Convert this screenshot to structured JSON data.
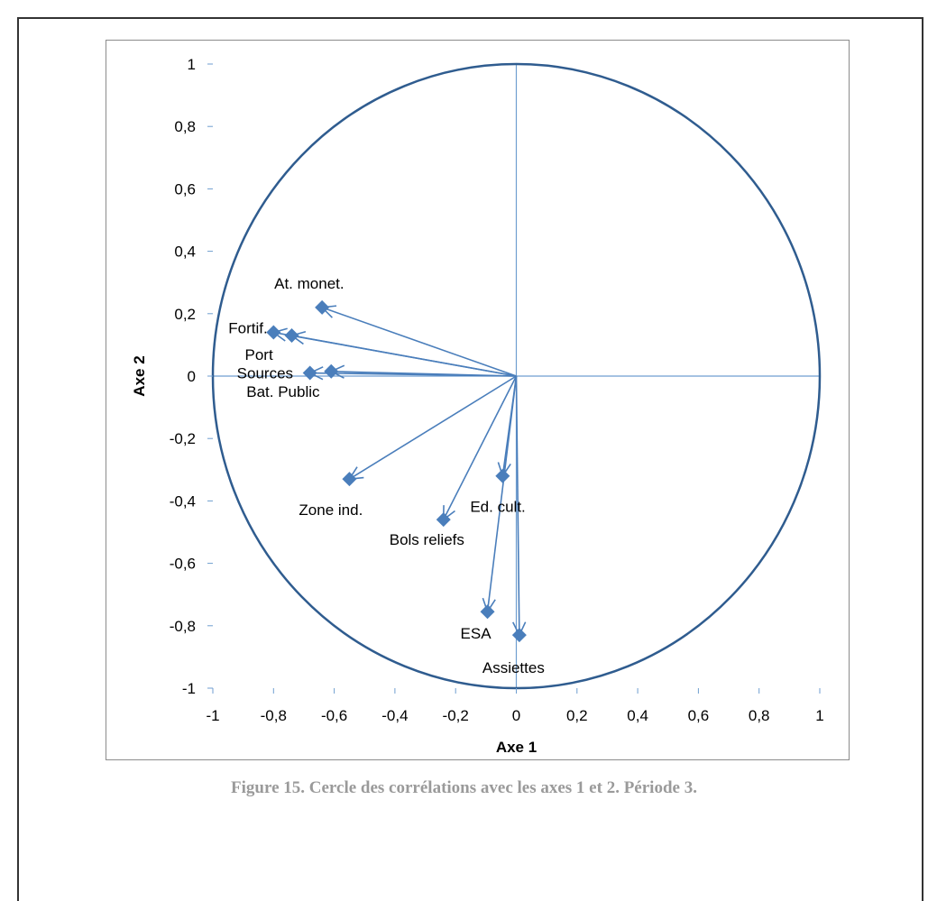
{
  "caption": "Figure 15. Cercle des corrélations avec les axes 1 et 2. Période 3.",
  "colors": {
    "circle": "#2f5c8f",
    "arrow": "#4a7ebb",
    "marker": "#4a7ebb",
    "axis": "#6f9ed0"
  },
  "chart_data": {
    "type": "scatter",
    "xlabel": "Axe 1",
    "ylabel": "Axe 2",
    "xlim": [
      -1,
      1
    ],
    "ylim": [
      -1,
      1
    ],
    "xticks": [
      "-1",
      "-0,8",
      "-0,6",
      "-0,4",
      "-0,2",
      "0",
      "0,2",
      "0,4",
      "0,6",
      "0,8",
      "1"
    ],
    "yticks": [
      "1",
      "0,8",
      "0,6",
      "0,4",
      "0,2",
      "0",
      "-0,2",
      "-0,4",
      "-0,6",
      "-0,8",
      "-1"
    ],
    "grid": false,
    "legend": "none",
    "unit_circle": true,
    "points": [
      {
        "label": "At. monet.",
        "x": -0.64,
        "y": 0.22
      },
      {
        "label": "Fortif.",
        "x": -0.8,
        "y": 0.14
      },
      {
        "label": "Port",
        "x": -0.74,
        "y": 0.13
      },
      {
        "label": "Sources",
        "x": -0.68,
        "y": 0.01
      },
      {
        "label": "Bat. Public",
        "x": -0.61,
        "y": 0.015
      },
      {
        "label": "Zone ind.",
        "x": -0.55,
        "y": -0.33
      },
      {
        "label": "Bols reliefs",
        "x": -0.24,
        "y": -0.46
      },
      {
        "label": "Ed. cult.",
        "x": -0.045,
        "y": -0.32
      },
      {
        "label": "ESA",
        "x": -0.095,
        "y": -0.755
      },
      {
        "label": "Assiettes",
        "x": 0.01,
        "y": -0.83
      }
    ]
  }
}
